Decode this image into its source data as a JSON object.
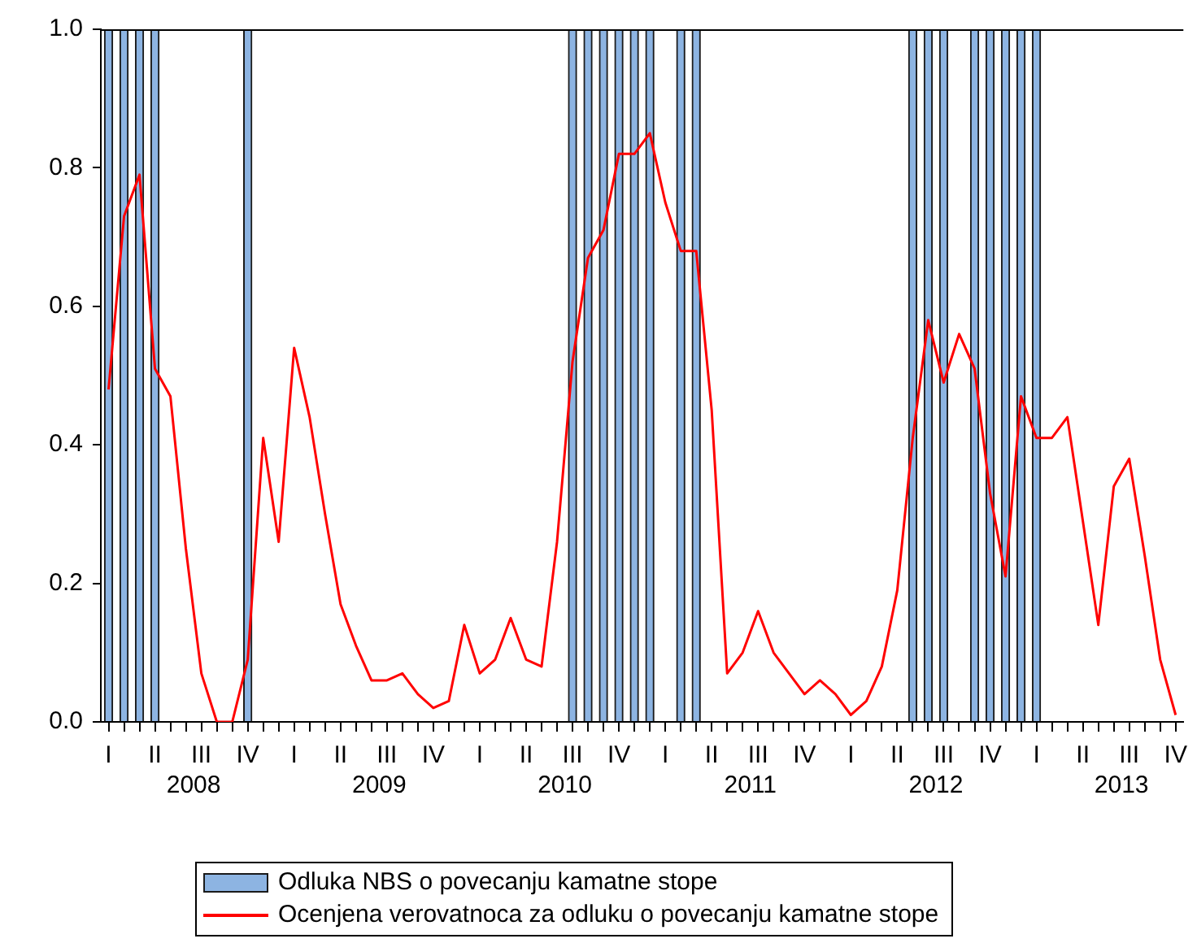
{
  "chart_data": {
    "type": "bar",
    "categories": [
      "I",
      null,
      null,
      "II",
      null,
      null,
      "III",
      null,
      null,
      "IV",
      null,
      null,
      "I",
      null,
      null,
      "II",
      null,
      null,
      "III",
      null,
      null,
      "IV",
      null,
      null,
      "I",
      null,
      null,
      "II",
      null,
      null,
      "III",
      null,
      null,
      "IV",
      null,
      null,
      "I",
      null,
      null,
      "II",
      null,
      null,
      "III",
      null,
      null,
      "IV",
      null,
      null,
      "I",
      null,
      null,
      "II",
      null,
      null,
      "III",
      null,
      null,
      "IV",
      null,
      null,
      "I",
      null,
      null,
      "II",
      null,
      null,
      "III",
      null,
      null,
      "IV"
    ],
    "series": [
      {
        "name": "Odluka NBS o povecanju kamatne stope",
        "color": "#8db4e2",
        "values": [
          1,
          1,
          1,
          1,
          0,
          0,
          0,
          0,
          0,
          1,
          0,
          0,
          0,
          0,
          0,
          0,
          0,
          0,
          0,
          0,
          0,
          0,
          0,
          0,
          0,
          0,
          0,
          0,
          0,
          0,
          1,
          1,
          1,
          1,
          1,
          1,
          0,
          1,
          1,
          0,
          0,
          0,
          0,
          0,
          0,
          0,
          0,
          0,
          0,
          0,
          0,
          0,
          1,
          1,
          1,
          0,
          1,
          1,
          1,
          1,
          1,
          0,
          0,
          0,
          0,
          0,
          0,
          0,
          0,
          0
        ]
      },
      {
        "name": "Ocenjena verovatnoca za odluku o povecanju kamatne stope",
        "type": "line",
        "color": "#ff0000",
        "values": [
          0.48,
          0.73,
          0.79,
          0.51,
          0.47,
          0.25,
          0.07,
          0.0,
          0.0,
          0.09,
          0.41,
          0.26,
          0.54,
          0.44,
          0.3,
          0.17,
          0.11,
          0.06,
          0.06,
          0.07,
          0.04,
          0.02,
          0.03,
          0.14,
          0.07,
          0.09,
          0.15,
          0.09,
          0.08,
          0.26,
          0.52,
          0.67,
          0.71,
          0.82,
          0.82,
          0.85,
          0.75,
          0.68,
          0.68,
          0.45,
          0.07,
          0.1,
          0.16,
          0.1,
          0.07,
          0.04,
          0.06,
          0.04,
          0.01,
          0.03,
          0.08,
          0.19,
          0.41,
          0.58,
          0.49,
          0.56,
          0.51,
          0.33,
          0.21,
          0.47,
          0.41,
          0.41,
          0.44,
          0.29,
          0.14,
          0.34,
          0.38,
          0.24,
          0.09,
          0.01
        ]
      }
    ],
    "annotations": [
      "2008",
      "2009",
      "2010",
      "2011",
      "2012",
      "2013"
    ],
    "ylim": [
      0,
      1
    ],
    "yticks": [
      {
        "value": 0,
        "label": "0.0"
      },
      {
        "value": 0.2,
        "label": "0.2"
      },
      {
        "value": 0.4,
        "label": "0.4"
      },
      {
        "value": 0.6,
        "label": "0.6"
      },
      {
        "value": 0.8,
        "label": "0.8"
      },
      {
        "value": 1,
        "label": "1.0"
      }
    ],
    "grid": false,
    "legend": "bottom",
    "marker": "none"
  }
}
